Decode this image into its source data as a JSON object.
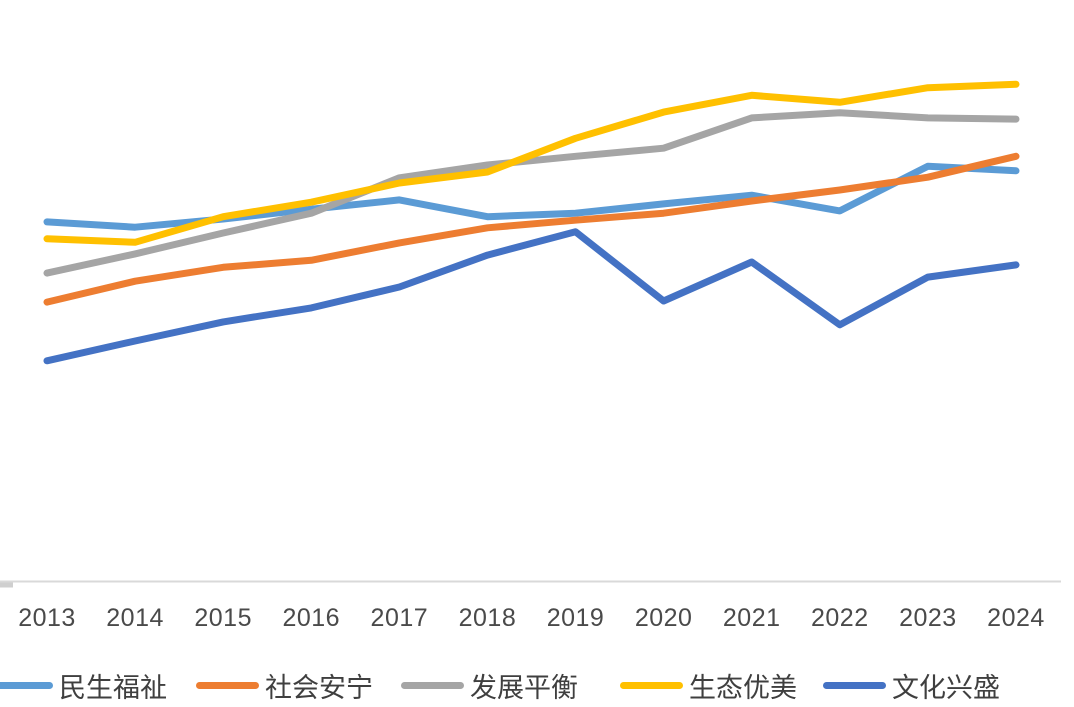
{
  "chart_data": {
    "type": "line",
    "title": "",
    "xlabel": "",
    "ylabel": "",
    "categories": [
      "2013",
      "2014",
      "2015",
      "2016",
      "2017",
      "2018",
      "2019",
      "2020",
      "2021",
      "2022",
      "2023",
      "2024"
    ],
    "series": [
      {
        "name": "民生福祉",
        "color": "#5B9BD5",
        "values": [
          0.618,
          0.609,
          0.623,
          0.64,
          0.656,
          0.627,
          0.633,
          0.649,
          0.664,
          0.637,
          0.714,
          0.706
        ]
      },
      {
        "name": "社会安宁",
        "color": "#ED7D31",
        "values": [
          0.48,
          0.516,
          0.54,
          0.552,
          0.582,
          0.608,
          0.621,
          0.633,
          0.654,
          0.673,
          0.695,
          0.731
        ]
      },
      {
        "name": "发展平衡",
        "color": "#A5A5A5",
        "values": [
          0.53,
          0.563,
          0.599,
          0.633,
          0.694,
          0.716,
          0.731,
          0.745,
          0.797,
          0.806,
          0.797,
          0.795
        ]
      },
      {
        "name": "生态优美",
        "color": "#FFC000",
        "values": [
          0.589,
          0.583,
          0.627,
          0.652,
          0.685,
          0.704,
          0.762,
          0.807,
          0.836,
          0.824,
          0.849,
          0.855
        ]
      },
      {
        "name": "文化兴盛",
        "color": "#4472C4",
        "values": [
          0.379,
          0.413,
          0.446,
          0.47,
          0.506,
          0.561,
          0.601,
          0.482,
          0.549,
          0.441,
          0.523,
          0.544
        ]
      }
    ],
    "ylim": [
      0,
      1
    ],
    "y_axis_visible": false,
    "grid": false,
    "legend_position": "bottom",
    "axis_color": "#D9D9D9",
    "tick_color": "#CFCFCF",
    "label_color": "#4a4a4a",
    "line_width": 7
  }
}
